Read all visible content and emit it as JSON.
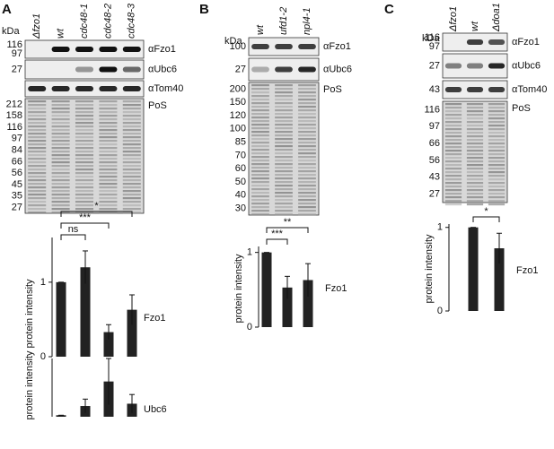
{
  "panels": [
    {
      "letter": "A",
      "kda": "kDa",
      "lanes": [
        "Δfzo1",
        "wt",
        "cdc48-1",
        "cdc48-2",
        "cdc48-3"
      ],
      "blots": [
        {
          "label": "αFzo1",
          "markers": [
            "116",
            "97"
          ]
        },
        {
          "label": "αUbc6",
          "markers": [
            "27"
          ]
        },
        {
          "label": "αTom40",
          "markers": []
        },
        {
          "label": "PoS",
          "markers": [
            "212",
            "158",
            "116",
            "97",
            "84",
            "66",
            "56",
            "45",
            "35",
            "27"
          ]
        }
      ]
    },
    {
      "letter": "B",
      "kda": "kDa",
      "lanes": [
        "wt",
        "ufd1-2",
        "npl4-1"
      ],
      "blots": [
        {
          "label": "αFzo1",
          "markers": [
            "100"
          ]
        },
        {
          "label": "αUbc6",
          "markers": [
            "27"
          ]
        },
        {
          "label": "PoS",
          "markers": [
            "200",
            "150",
            "120",
            "100",
            "85",
            "70",
            "60",
            "50",
            "40",
            "30"
          ]
        }
      ]
    },
    {
      "letter": "C",
      "kda": "kDa",
      "lanes": [
        "Δfzo1",
        "wt",
        "Δdoa1"
      ],
      "blots": [
        {
          "label": "αFzo1",
          "markers": [
            "116",
            "97"
          ]
        },
        {
          "label": "αUbc6",
          "markers": [
            "27"
          ]
        },
        {
          "label": "αTom40",
          "markers": [
            "43"
          ]
        },
        {
          "label": "PoS",
          "markers": [
            "116",
            "97",
            "66",
            "56",
            "43",
            "27"
          ]
        }
      ]
    }
  ],
  "chart_data": [
    {
      "type": "bar",
      "label": "Fzo1",
      "ylabel": "protein intensity",
      "categories": [
        null,
        null,
        null,
        null
      ],
      "values": [
        1,
        1.2,
        0.33,
        0.63
      ],
      "errors": [
        0,
        0.22,
        0.1,
        0.2
      ],
      "color": "#222222",
      "ylim": [
        0,
        1.6
      ],
      "yticks": [
        0,
        1
      ],
      "annotations": [
        "ns",
        "***",
        "*"
      ]
    },
    {
      "type": "bar",
      "label": "Ubc6",
      "ylabel": "protein intensity",
      "categories": [
        null,
        null,
        null,
        null
      ],
      "values": [
        1,
        7,
        23,
        8.5
      ],
      "errors": [
        0,
        4.5,
        15,
        6
      ],
      "color": "#222222",
      "ylim": [
        0,
        38
      ]
    },
    {
      "type": "bar",
      "label": "Fzo1",
      "ylabel": "protein intensity",
      "categories": [
        null,
        null,
        null
      ],
      "values": [
        1,
        0.53,
        0.63
      ],
      "errors": [
        0,
        0.15,
        0.22
      ],
      "color": "#222222",
      "ylim": [
        0,
        1.08
      ],
      "yticks": [
        0,
        1
      ],
      "annotations": [
        "***",
        "**"
      ]
    },
    {
      "type": "bar",
      "label": "Fzo1",
      "ylabel": "protein intensity",
      "categories": [
        null,
        null
      ],
      "values": [
        1,
        0.75
      ],
      "errors": [
        0,
        0.18
      ],
      "color": "#222222",
      "ylim": [
        0,
        1.04
      ],
      "yticks": [
        0,
        1
      ],
      "annotations": [
        "*"
      ]
    }
  ]
}
